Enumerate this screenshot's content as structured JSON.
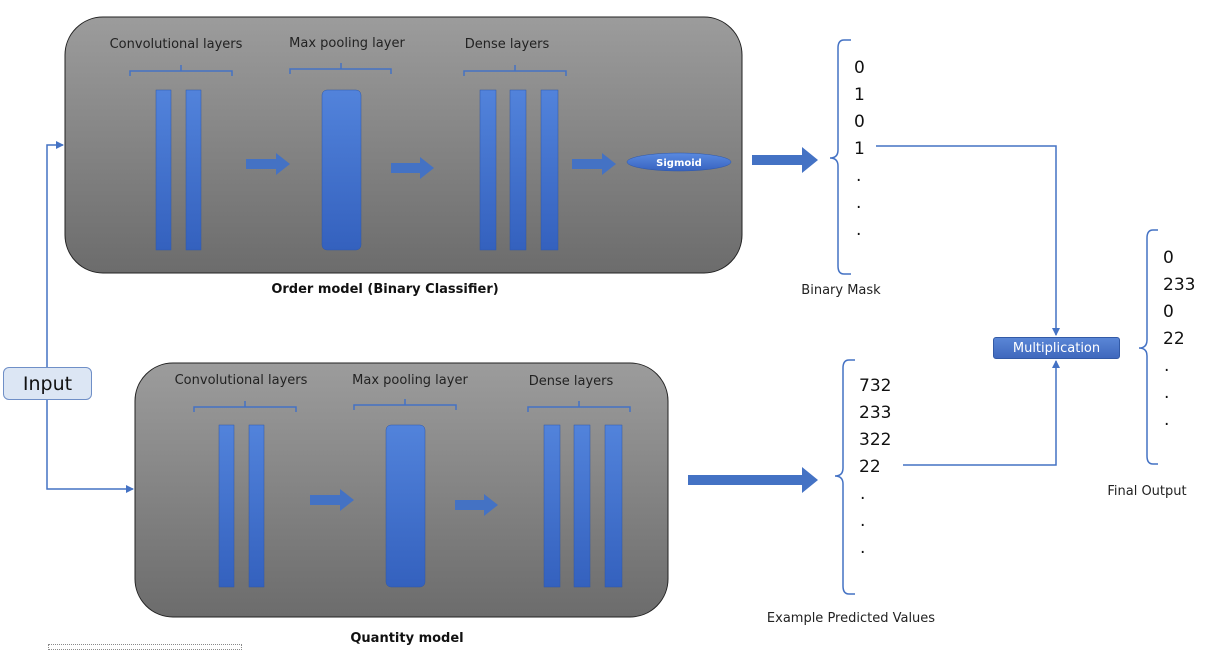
{
  "input": {
    "label": "Input"
  },
  "order_model": {
    "title": "Order model (Binary Classifier)",
    "conv_label": "Convolutional  layers",
    "pool_label": "Max pooling layer",
    "dense_label": "Dense layers",
    "sigmoid_label": "Sigmoid"
  },
  "quantity_model": {
    "title": "Quantity model",
    "conv_label": "Convolutional  layers",
    "pool_label": "Max pooling layer",
    "dense_label": "Dense layers"
  },
  "binary_mask": {
    "values": [
      "0",
      "1",
      "0",
      "1",
      ".",
      ".",
      "."
    ],
    "caption": "Binary Mask"
  },
  "predicted_values": {
    "values": [
      "732",
      "233",
      "322",
      "22",
      ".",
      ".",
      "."
    ],
    "caption": "Example Predicted Values"
  },
  "multiplication": {
    "label": "Multiplication"
  },
  "final_output": {
    "values": [
      "0",
      "233",
      "0",
      "22",
      ".",
      ".",
      "."
    ],
    "caption": "Final Output"
  },
  "colors": {
    "panel_top": "#9a9a9a",
    "panel_bottom": "#6e6e6e",
    "layer_blue": "#3b6ac4",
    "line_blue": "#4472c4"
  }
}
